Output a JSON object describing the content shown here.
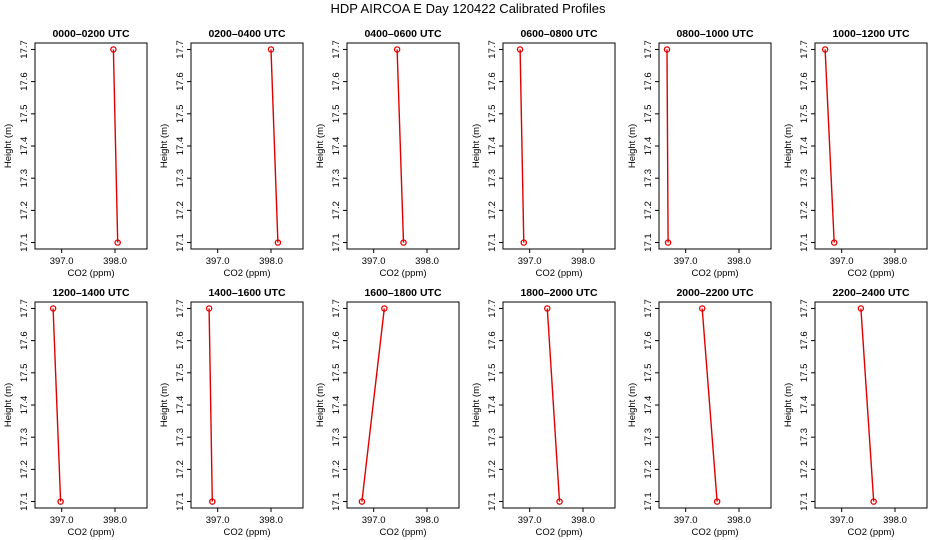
{
  "title": "HDP AIRCOA E  Day 120422  Calibrated Profiles",
  "colors": {
    "profile": "#e00000",
    "axes": "#000000"
  },
  "chart_data": [
    {
      "type": "line",
      "title": "0000–0200 UTC",
      "xlabel": "CO2 (ppm)",
      "ylabel": "Height (m)",
      "xlim": [
        396.5,
        398.6
      ],
      "ylim": [
        17.08,
        17.72
      ],
      "xticks": [
        "397.0",
        "398.0"
      ],
      "yticks": [
        "17.1",
        "17.2",
        "17.3",
        "17.4",
        "17.5",
        "17.6",
        "17.7"
      ],
      "points": [
        {
          "x": 397.97,
          "y": 17.7
        },
        {
          "x": 398.05,
          "y": 17.1
        }
      ]
    },
    {
      "type": "line",
      "title": "0200–0400 UTC",
      "xlabel": "CO2 (ppm)",
      "ylabel": "Height (m)",
      "xlim": [
        396.5,
        398.6
      ],
      "ylim": [
        17.08,
        17.72
      ],
      "xticks": [
        "397.0",
        "398.0"
      ],
      "yticks": [
        "17.1",
        "17.2",
        "17.3",
        "17.4",
        "17.5",
        "17.6",
        "17.7"
      ],
      "points": [
        {
          "x": 398.0,
          "y": 17.7
        },
        {
          "x": 398.13,
          "y": 17.1
        }
      ]
    },
    {
      "type": "line",
      "title": "0400–0600 UTC",
      "xlabel": "CO2 (ppm)",
      "ylabel": "Height (m)",
      "xlim": [
        396.5,
        398.6
      ],
      "ylim": [
        17.08,
        17.72
      ],
      "xticks": [
        "397.0",
        "398.0"
      ],
      "yticks": [
        "17.1",
        "17.2",
        "17.3",
        "17.4",
        "17.5",
        "17.6",
        "17.7"
      ],
      "points": [
        {
          "x": 397.44,
          "y": 17.7
        },
        {
          "x": 397.56,
          "y": 17.1
        }
      ]
    },
    {
      "type": "line",
      "title": "0600–0800 UTC",
      "xlabel": "CO2 (ppm)",
      "ylabel": "Height (m)",
      "xlim": [
        396.5,
        398.6
      ],
      "ylim": [
        17.08,
        17.72
      ],
      "xticks": [
        "397.0",
        "398.0"
      ],
      "yticks": [
        "17.1",
        "17.2",
        "17.3",
        "17.4",
        "17.5",
        "17.6",
        "17.7"
      ],
      "points": [
        {
          "x": 396.82,
          "y": 17.7
        },
        {
          "x": 396.89,
          "y": 17.1
        }
      ]
    },
    {
      "type": "line",
      "title": "0800–1000 UTC",
      "xlabel": "CO2 (ppm)",
      "ylabel": "Height (m)",
      "xlim": [
        396.5,
        398.6
      ],
      "ylim": [
        17.08,
        17.72
      ],
      "xticks": [
        "397.0",
        "398.0"
      ],
      "yticks": [
        "17.1",
        "17.2",
        "17.3",
        "17.4",
        "17.5",
        "17.6",
        "17.7"
      ],
      "points": [
        {
          "x": 396.65,
          "y": 17.7
        },
        {
          "x": 396.67,
          "y": 17.1
        }
      ]
    },
    {
      "type": "line",
      "title": "1000–1200 UTC",
      "xlabel": "CO2 (ppm)",
      "ylabel": "Height (m)",
      "xlim": [
        396.5,
        398.6
      ],
      "ylim": [
        17.08,
        17.72
      ],
      "xticks": [
        "397.0",
        "398.0"
      ],
      "yticks": [
        "17.1",
        "17.2",
        "17.3",
        "17.4",
        "17.5",
        "17.6",
        "17.7"
      ],
      "points": [
        {
          "x": 396.69,
          "y": 17.7
        },
        {
          "x": 396.86,
          "y": 17.1
        }
      ]
    },
    {
      "type": "line",
      "title": "1200–1400 UTC",
      "xlabel": "CO2 (ppm)",
      "ylabel": "Height (m)",
      "xlim": [
        396.5,
        398.6
      ],
      "ylim": [
        17.08,
        17.72
      ],
      "xticks": [
        "397.0",
        "398.0"
      ],
      "yticks": [
        "17.1",
        "17.2",
        "17.3",
        "17.4",
        "17.5",
        "17.6",
        "17.7"
      ],
      "points": [
        {
          "x": 396.84,
          "y": 17.7
        },
        {
          "x": 396.98,
          "y": 17.1
        }
      ]
    },
    {
      "type": "line",
      "title": "1400–1600 UTC",
      "xlabel": "CO2 (ppm)",
      "ylabel": "Height (m)",
      "xlim": [
        396.5,
        398.6
      ],
      "ylim": [
        17.08,
        17.72
      ],
      "xticks": [
        "397.0",
        "398.0"
      ],
      "yticks": [
        "17.1",
        "17.2",
        "17.3",
        "17.4",
        "17.5",
        "17.6",
        "17.7"
      ],
      "points": [
        {
          "x": 396.84,
          "y": 17.7
        },
        {
          "x": 396.9,
          "y": 17.1
        }
      ]
    },
    {
      "type": "line",
      "title": "1600–1800 UTC",
      "xlabel": "CO2 (ppm)",
      "ylabel": "Height (m)",
      "xlim": [
        396.5,
        398.6
      ],
      "ylim": [
        17.08,
        17.72
      ],
      "xticks": [
        "397.0",
        "398.0"
      ],
      "yticks": [
        "17.1",
        "17.2",
        "17.3",
        "17.4",
        "17.5",
        "17.6",
        "17.7"
      ],
      "points": [
        {
          "x": 397.2,
          "y": 17.7
        },
        {
          "x": 396.78,
          "y": 17.1
        }
      ]
    },
    {
      "type": "line",
      "title": "1800–2000 UTC",
      "xlabel": "CO2 (ppm)",
      "ylabel": "Height (m)",
      "xlim": [
        396.5,
        398.6
      ],
      "ylim": [
        17.08,
        17.72
      ],
      "xticks": [
        "397.0",
        "398.0"
      ],
      "yticks": [
        "17.1",
        "17.2",
        "17.3",
        "17.4",
        "17.5",
        "17.6",
        "17.7"
      ],
      "points": [
        {
          "x": 397.33,
          "y": 17.7
        },
        {
          "x": 397.56,
          "y": 17.1
        }
      ]
    },
    {
      "type": "line",
      "title": "2000–2200 UTC",
      "xlabel": "CO2 (ppm)",
      "ylabel": "Height (m)",
      "xlim": [
        396.5,
        398.6
      ],
      "ylim": [
        17.08,
        17.72
      ],
      "xticks": [
        "397.0",
        "398.0"
      ],
      "yticks": [
        "17.1",
        "17.2",
        "17.3",
        "17.4",
        "17.5",
        "17.6",
        "17.7"
      ],
      "points": [
        {
          "x": 397.31,
          "y": 17.7
        },
        {
          "x": 397.59,
          "y": 17.1
        }
      ]
    },
    {
      "type": "line",
      "title": "2200–2400 UTC",
      "xlabel": "CO2 (ppm)",
      "ylabel": "Height (m)",
      "xlim": [
        396.5,
        398.6
      ],
      "ylim": [
        17.08,
        17.72
      ],
      "xticks": [
        "397.0",
        "398.0"
      ],
      "yticks": [
        "17.1",
        "17.2",
        "17.3",
        "17.4",
        "17.5",
        "17.6",
        "17.7"
      ],
      "points": [
        {
          "x": 397.36,
          "y": 17.7
        },
        {
          "x": 397.6,
          "y": 17.1
        }
      ]
    }
  ]
}
